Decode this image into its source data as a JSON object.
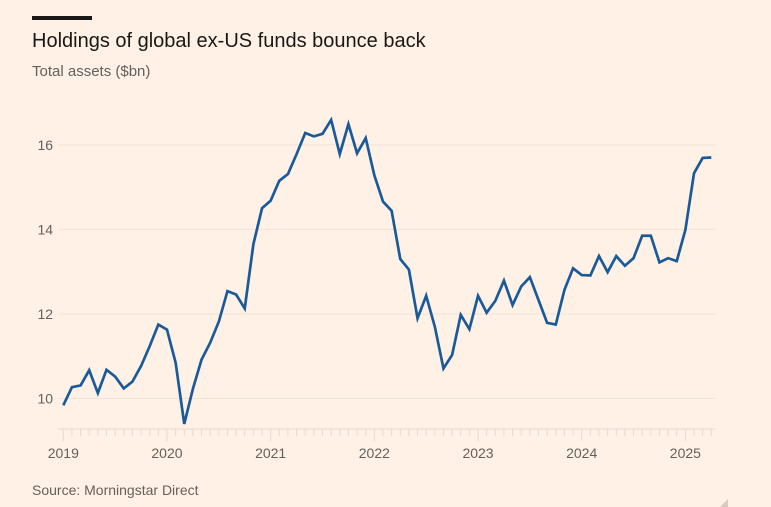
{
  "header": {
    "title": "Holdings of global ex-US funds bounce back",
    "subtitle": "Total assets ($bn)"
  },
  "footer": {
    "source": "Source: Morningstar Direct"
  },
  "colors": {
    "background": "#fff1e5",
    "series_line": "#1b5a99",
    "accent_bar": "#1a1817",
    "text_muted": "#66605c",
    "gridline": "#f2e2d5"
  },
  "chart_data": {
    "type": "line",
    "title": "Holdings of global ex-US funds bounce back",
    "subtitle": "Total assets ($bn)",
    "xlabel": "",
    "ylabel": "Total assets ($bn)",
    "frequency": "monthly",
    "x": [
      "2019-01",
      "2019-02",
      "2019-03",
      "2019-04",
      "2019-05",
      "2019-06",
      "2019-07",
      "2019-08",
      "2019-09",
      "2019-10",
      "2019-11",
      "2019-12",
      "2020-01",
      "2020-02",
      "2020-03",
      "2020-04",
      "2020-05",
      "2020-06",
      "2020-07",
      "2020-08",
      "2020-09",
      "2020-10",
      "2020-11",
      "2020-12",
      "2021-01",
      "2021-02",
      "2021-03",
      "2021-04",
      "2021-05",
      "2021-06",
      "2021-07",
      "2021-08",
      "2021-09",
      "2021-10",
      "2021-11",
      "2021-12",
      "2022-01",
      "2022-02",
      "2022-03",
      "2022-04",
      "2022-05",
      "2022-06",
      "2022-07",
      "2022-08",
      "2022-09",
      "2022-10",
      "2022-11",
      "2022-12",
      "2023-01",
      "2023-02",
      "2023-03",
      "2023-04",
      "2023-05",
      "2023-06",
      "2023-07",
      "2023-08",
      "2023-09",
      "2023-10",
      "2023-11",
      "2023-12",
      "2024-01",
      "2024-02",
      "2024-03",
      "2024-04",
      "2024-05",
      "2024-06",
      "2024-07",
      "2024-08",
      "2024-09",
      "2024-10",
      "2024-11",
      "2024-12",
      "2025-01",
      "2025-02",
      "2025-03",
      "2025-04"
    ],
    "series": [
      {
        "name": "Total assets",
        "color": "#1b5a99",
        "values": [
          9.84,
          10.27,
          10.31,
          10.67,
          10.13,
          10.68,
          10.52,
          10.24,
          10.4,
          10.77,
          11.24,
          11.75,
          11.63,
          10.85,
          9.4,
          10.23,
          10.92,
          11.32,
          11.82,
          12.54,
          12.46,
          12.13,
          13.65,
          14.5,
          14.68,
          15.15,
          15.31,
          15.78,
          16.28,
          16.2,
          16.26,
          16.59,
          15.78,
          16.49,
          15.8,
          16.16,
          15.28,
          14.66,
          14.44,
          13.3,
          13.05,
          11.9,
          12.43,
          11.7,
          10.71,
          11.03,
          11.98,
          11.64,
          12.43,
          12.03,
          12.31,
          12.79,
          12.21,
          12.65,
          12.87,
          12.33,
          11.79,
          11.75,
          12.57,
          13.08,
          12.92,
          12.91,
          13.37,
          12.99,
          13.37,
          13.14,
          13.32,
          13.85,
          13.85,
          13.22,
          13.32,
          13.25,
          13.99,
          15.33,
          15.69,
          15.7
        ]
      }
    ],
    "y_ticks": [
      10,
      12,
      14,
      16
    ],
    "x_tick_labels": [
      "2019",
      "2020",
      "2021",
      "2022",
      "2023",
      "2024",
      "2025"
    ],
    "ylim": [
      9.28,
      16.8
    ],
    "xlim": [
      "2019-01",
      "2025-04"
    ],
    "grid": true,
    "legend": "none"
  }
}
